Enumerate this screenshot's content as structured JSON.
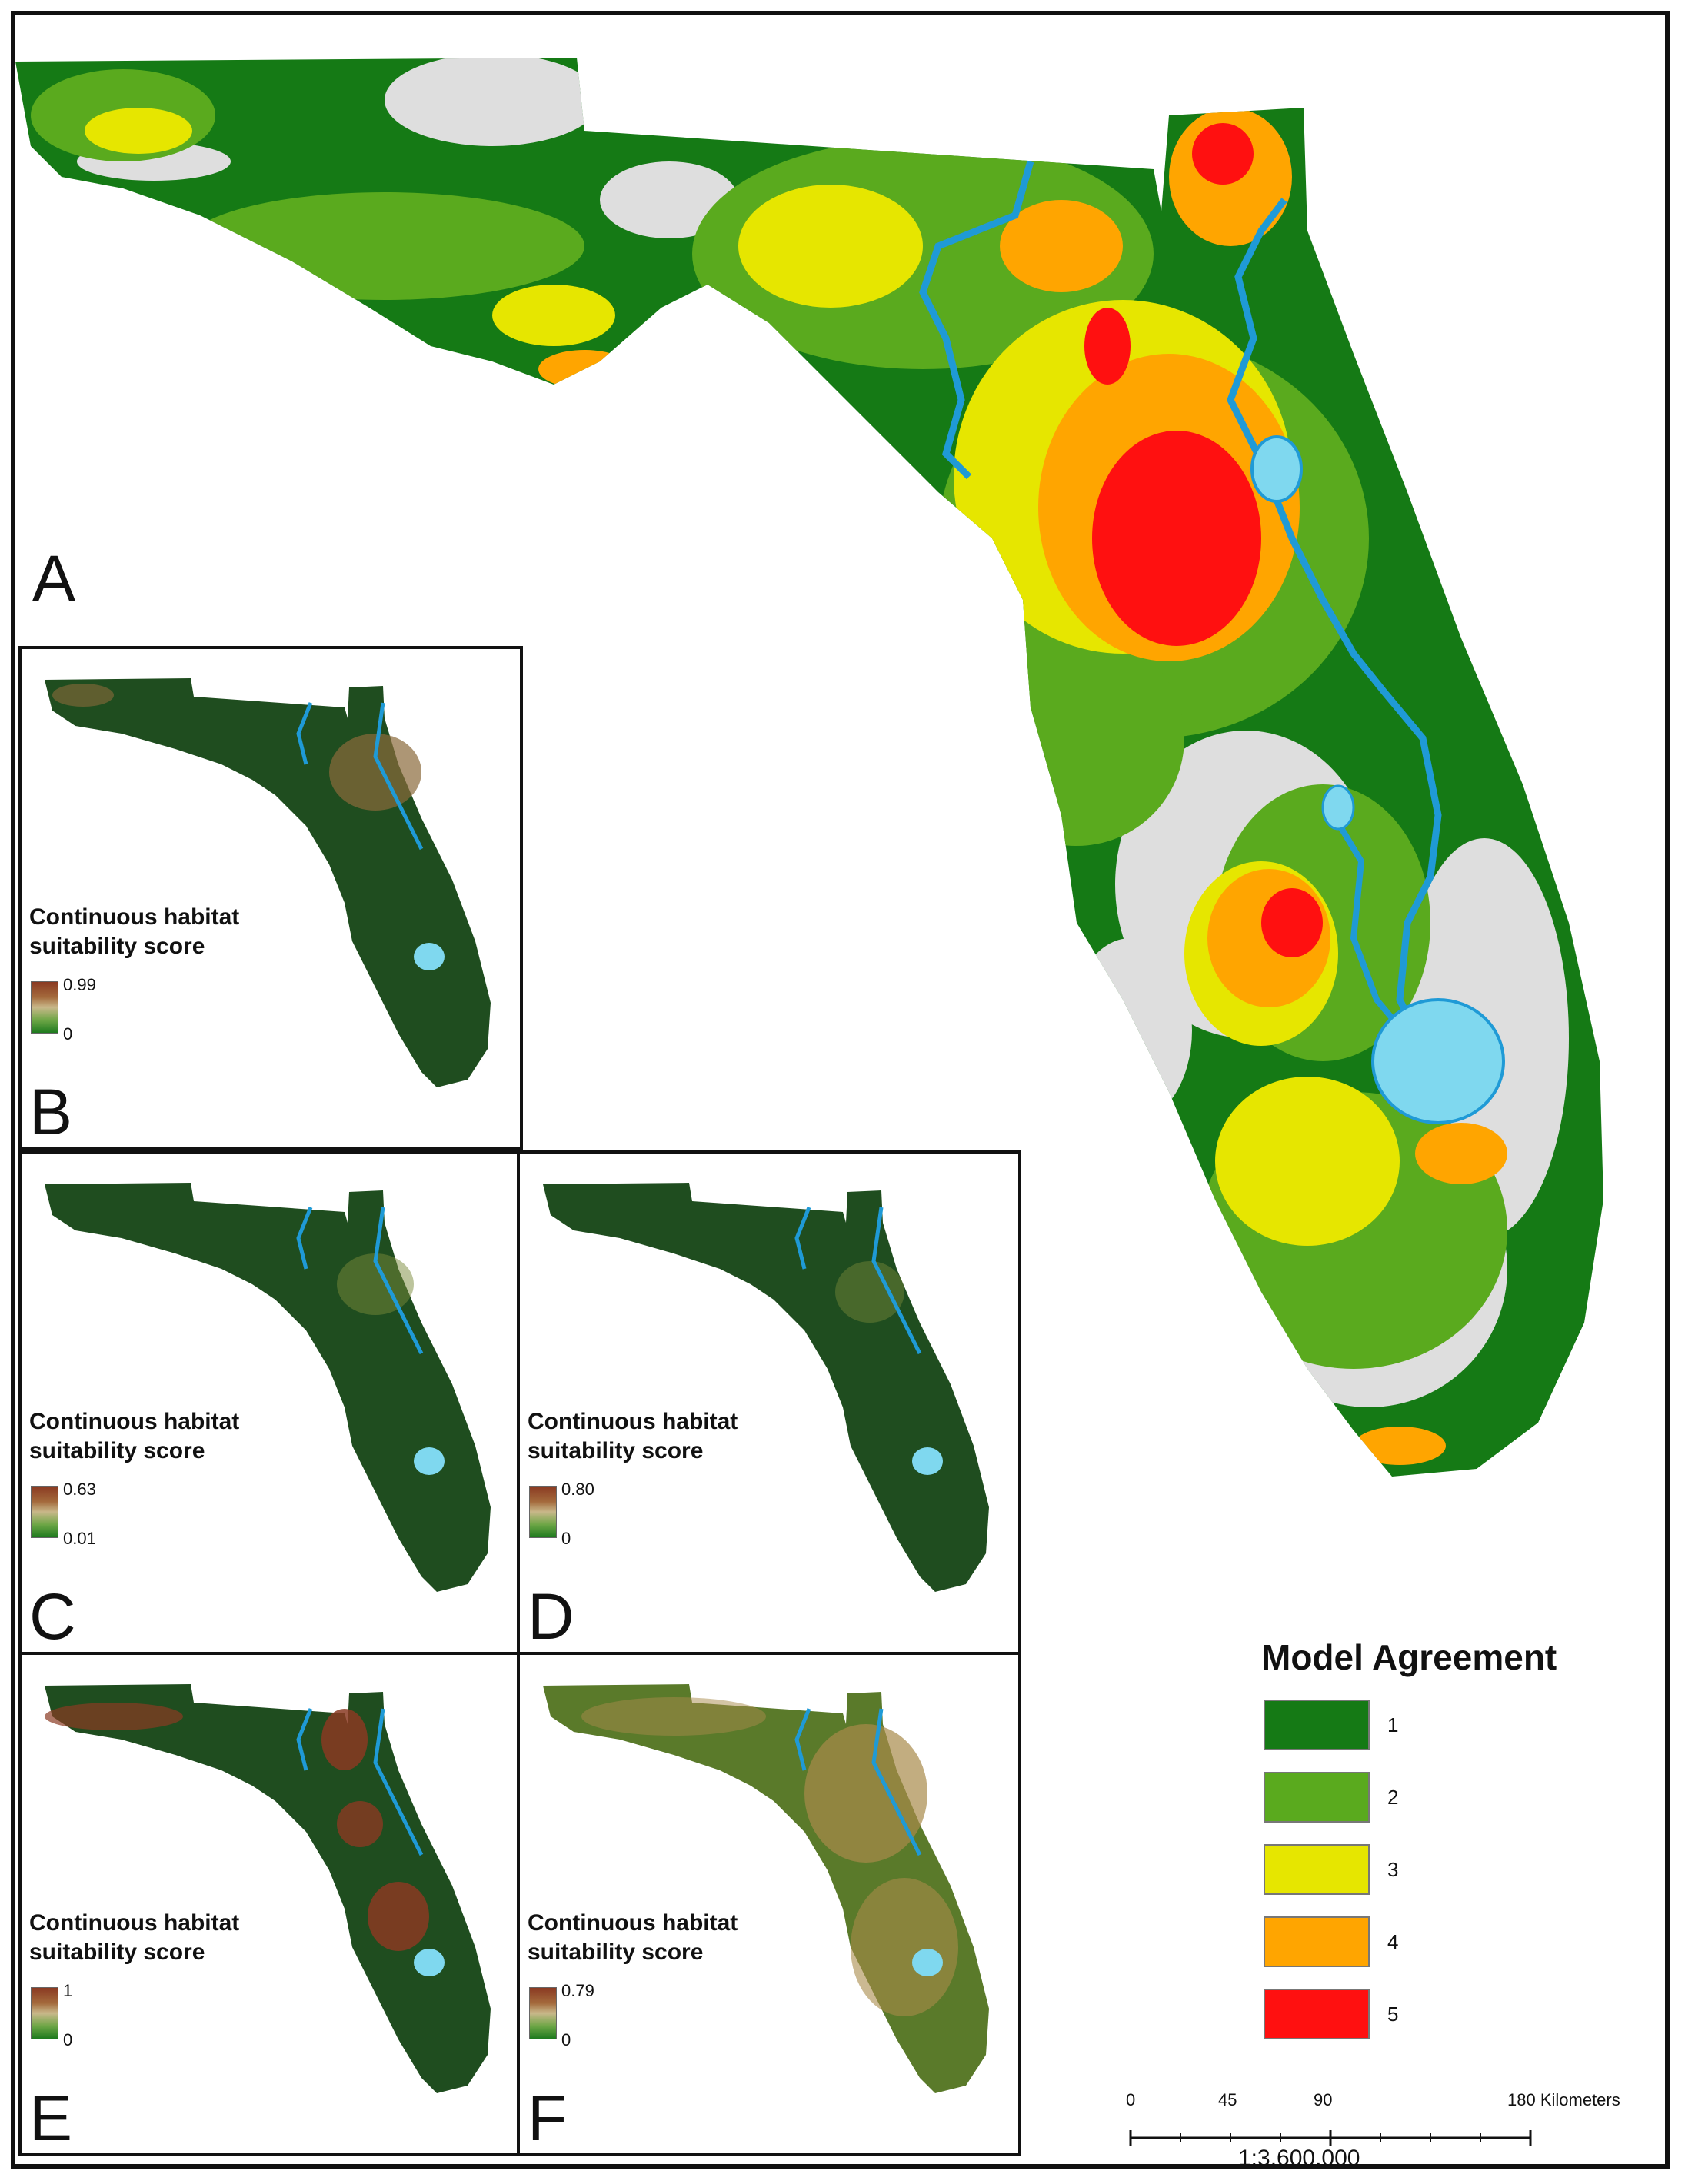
{
  "panels": {
    "A": {
      "letter": "A"
    },
    "B": {
      "letter": "B",
      "legend_title_1": "Continuous habitat",
      "legend_title_2": "suitability score",
      "max": "0.99",
      "min": "0"
    },
    "C": {
      "letter": "C",
      "legend_title_1": "Continuous habitat",
      "legend_title_2": "suitability score",
      "max": "0.63",
      "min": "0.01"
    },
    "D": {
      "letter": "D",
      "legend_title_1": "Continuous habitat",
      "legend_title_2": "suitability score",
      "max": "0.80",
      "min": "0"
    },
    "E": {
      "letter": "E",
      "legend_title_1": "Continuous habitat",
      "legend_title_2": "suitability score",
      "max": "1",
      "min": "0"
    },
    "F": {
      "letter": "F",
      "legend_title_1": "Continuous habitat",
      "legend_title_2": "suitability score",
      "max": "0.79",
      "min": "0"
    }
  },
  "model_agreement": {
    "title": "Model Agreement",
    "classes": [
      {
        "label": "1",
        "color": "#157a15"
      },
      {
        "label": "2",
        "color": "#5aaa1e"
      },
      {
        "label": "3",
        "color": "#e6e600"
      },
      {
        "label": "4",
        "color": "#ffa500"
      },
      {
        "label": "5",
        "color": "#ff1010"
      }
    ]
  },
  "scale": {
    "ticks": [
      "0",
      "45",
      "90",
      "180 Kilometers"
    ],
    "ratio": "1:3,600,000"
  },
  "colors": {
    "water": "#1f9ad6",
    "lake": "#7fd8ef",
    "no_data": "#dedede",
    "inset_dark": "#1f4d1f"
  }
}
